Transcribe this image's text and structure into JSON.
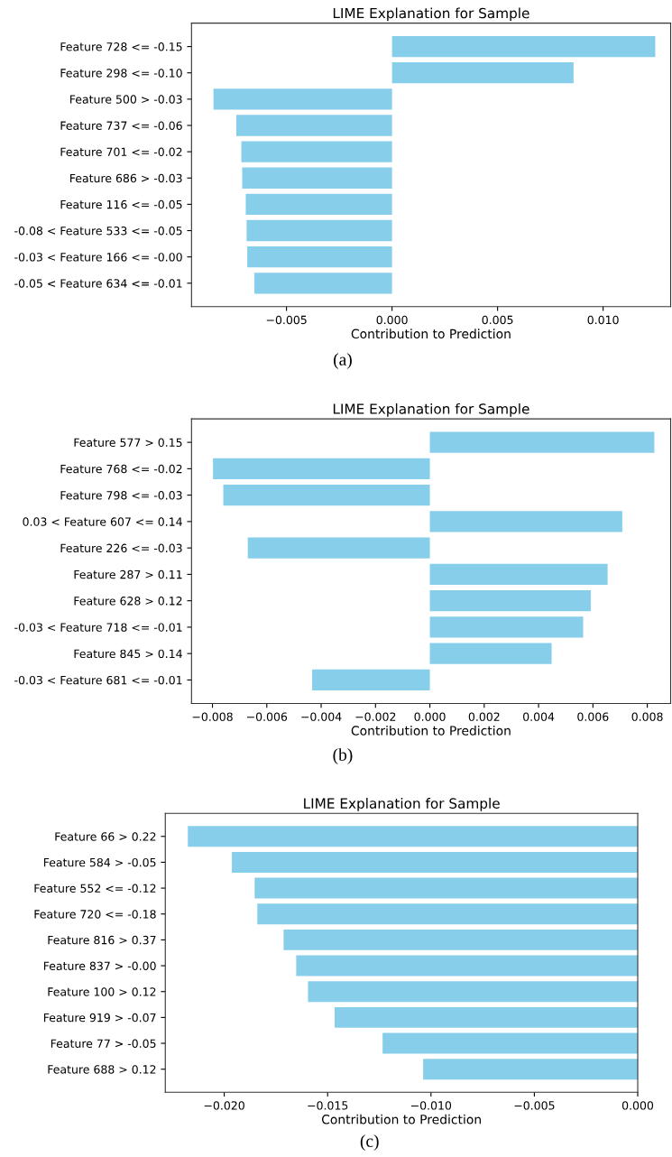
{
  "chart_data": [
    {
      "type": "bar",
      "orientation": "horizontal",
      "title": "LIME Explanation for Sample",
      "xlabel": "Contribution to Prediction",
      "color": "#87ceeb",
      "grid": false,
      "annotations": [
        "(a)"
      ],
      "categories": [
        "Feature 728 <= -0.15",
        "Feature 298 <= -0.10",
        "Feature 500 > -0.03",
        "Feature 737 <= -0.06",
        "Feature 701 <= -0.02",
        "Feature 686 > -0.03",
        "Feature 116 <= -0.05",
        "-0.08 < Feature 533 <= -0.05",
        "-0.03 < Feature 166 <= -0.00",
        "-0.05 < Feature 634 <= -0.01"
      ],
      "values": [
        0.01247,
        0.0086,
        -0.00846,
        -0.00738,
        -0.00714,
        -0.0071,
        -0.00693,
        -0.00689,
        -0.00686,
        -0.00652
      ],
      "xlim": [
        -0.0095,
        0.0132
      ],
      "xticks": [
        {
          "value": -0.005,
          "label": "−0.005"
        },
        {
          "value": 0.0,
          "label": "0.000"
        },
        {
          "value": 0.005,
          "label": "0.005"
        },
        {
          "value": 0.01,
          "label": "0.010"
        }
      ]
    },
    {
      "type": "bar",
      "orientation": "horizontal",
      "title": "LIME Explanation for Sample",
      "xlabel": "Contribution to Prediction",
      "color": "#87ceeb",
      "grid": false,
      "annotations": [
        "(b)"
      ],
      "categories": [
        "Feature 577 > 0.15",
        "Feature 768 <= -0.02",
        "Feature 798 <= -0.03",
        "0.03 < Feature 607 <= 0.14",
        "Feature 226 <= -0.03",
        "Feature 287 > 0.11",
        "Feature 628 > 0.12",
        "-0.03 < Feature 718 <= -0.01",
        "Feature 845 > 0.14",
        "-0.03 < Feature 681 <= -0.01"
      ],
      "values": [
        0.00826,
        -0.00798,
        -0.0076,
        0.00708,
        -0.0067,
        0.00654,
        0.00592,
        0.00564,
        0.00448,
        -0.00433
      ],
      "xlim": [
        -0.00877,
        0.00886
      ],
      "xticks": [
        {
          "value": -0.008,
          "label": "−0.008"
        },
        {
          "value": -0.006,
          "label": "−0.006"
        },
        {
          "value": -0.004,
          "label": "−0.004"
        },
        {
          "value": -0.002,
          "label": "−0.002"
        },
        {
          "value": 0.0,
          "label": "0.000"
        },
        {
          "value": 0.002,
          "label": "0.002"
        },
        {
          "value": 0.004,
          "label": "0.004"
        },
        {
          "value": 0.006,
          "label": "0.006"
        },
        {
          "value": 0.008,
          "label": "0.008"
        }
      ]
    },
    {
      "type": "bar",
      "orientation": "horizontal",
      "title": "LIME Explanation for Sample",
      "xlabel": "Contribution to Prediction",
      "color": "#87ceeb",
      "grid": false,
      "annotations": [
        "(c)"
      ],
      "categories": [
        "Feature 66 > 0.22",
        "Feature 584 > -0.05",
        "Feature 552 <= -0.12",
        "Feature 720 <= -0.18",
        "Feature 816 > 0.37",
        "Feature 837 > -0.00",
        "Feature 100 > 0.12",
        "Feature 919 > -0.07",
        "Feature 77 > -0.05",
        "Feature 688 > 0.12"
      ],
      "values": [
        -0.02176,
        -0.01963,
        -0.01853,
        -0.0184,
        -0.01713,
        -0.01652,
        -0.01595,
        -0.01466,
        -0.01234,
        -0.01038
      ],
      "xlim": [
        -0.02285,
        0.0
      ],
      "xticks": [
        {
          "value": -0.02,
          "label": "−0.020"
        },
        {
          "value": -0.015,
          "label": "−0.015"
        },
        {
          "value": -0.01,
          "label": "−0.010"
        },
        {
          "value": -0.005,
          "label": "−0.005"
        },
        {
          "value": 0.0,
          "label": "0.000"
        }
      ]
    }
  ]
}
